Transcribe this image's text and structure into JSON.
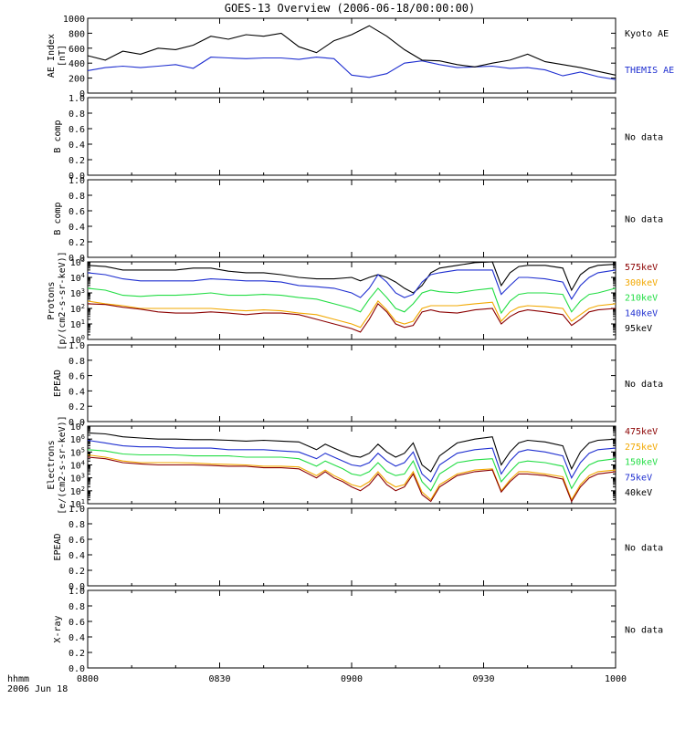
{
  "title": "GOES-13 Overview (2006-06-18/00:00:00)",
  "time_axis": {
    "row_label": "hhmm",
    "date_label": "2006 Jun 18",
    "ticks": [
      "0800",
      "0830",
      "0900",
      "0930",
      "1000"
    ]
  },
  "colors": {
    "black": "#000000",
    "blue": "#1f2fd0",
    "green": "#22dd44",
    "orange": "#f2a800",
    "darkred": "#8b0000"
  },
  "chart_data": [
    {
      "type": "line",
      "panel": "ae",
      "ylabel": [
        "AE Index",
        "[nT]"
      ],
      "ylim": [
        0,
        1000
      ],
      "yticks": [
        "0",
        "200",
        "400",
        "600",
        "800",
        "1000"
      ],
      "x_unit": "minutes after 08:00 UT",
      "x": [
        0,
        4,
        8,
        12,
        16,
        20,
        24,
        28,
        32,
        36,
        40,
        44,
        48,
        52,
        56,
        60,
        64,
        68,
        72,
        76,
        80,
        84,
        88,
        92,
        96,
        100,
        104,
        108,
        112,
        116,
        120
      ],
      "series": [
        {
          "name": "Kyoto AE",
          "color": "black",
          "values": [
            500,
            440,
            560,
            520,
            600,
            580,
            640,
            760,
            720,
            780,
            760,
            800,
            620,
            540,
            700,
            780,
            900,
            760,
            580,
            440,
            430,
            380,
            350,
            400,
            440,
            520,
            420,
            380,
            340,
            290,
            240
          ]
        },
        {
          "name": "THEMIS AE",
          "color": "blue",
          "values": [
            300,
            340,
            360,
            340,
            360,
            380,
            330,
            480,
            470,
            460,
            470,
            470,
            450,
            480,
            460,
            240,
            210,
            260,
            400,
            430,
            380,
            340,
            350,
            360,
            330,
            340,
            310,
            230,
            280,
            220,
            180
          ]
        }
      ],
      "legend": "right"
    },
    {
      "type": "line",
      "panel": "b-comp-1",
      "ylabel": [
        "B comp"
      ],
      "ylim": [
        0,
        1
      ],
      "yticks": [
        "0.0",
        "0.2",
        "0.4",
        "0.6",
        "0.8",
        "1.0"
      ],
      "note": "No data"
    },
    {
      "type": "line",
      "panel": "b-comp-2",
      "ylabel": [
        "B comp"
      ],
      "ylim": [
        0,
        1
      ],
      "yticks": [
        "0.0",
        "0.2",
        "0.4",
        "0.6",
        "0.8",
        "1.0"
      ],
      "note": "No data"
    },
    {
      "type": "line",
      "panel": "protons",
      "ylabel": [
        "Protons",
        "[p/(cm2-s-sr-keV)]"
      ],
      "scale": "log",
      "ylim": [
        1,
        100000
      ],
      "yticks": [
        "10^0",
        "10^1",
        "10^2",
        "10^3",
        "10^4",
        "10^5"
      ],
      "x_unit": "minutes after 08:00 UT",
      "x": [
        0,
        4,
        8,
        12,
        16,
        20,
        24,
        28,
        32,
        36,
        40,
        44,
        48,
        52,
        56,
        60,
        62,
        64,
        66,
        68,
        70,
        72,
        74,
        76,
        78,
        80,
        84,
        88,
        92,
        94,
        96,
        98,
        100,
        104,
        108,
        110,
        112,
        114,
        116,
        120
      ],
      "series": [
        {
          "name": "575keV",
          "color": "darkred",
          "values": [
            200,
            180,
            120,
            90,
            60,
            50,
            50,
            60,
            50,
            40,
            50,
            50,
            40,
            20,
            10,
            5,
            3,
            20,
            200,
            60,
            10,
            6,
            8,
            60,
            80,
            60,
            50,
            80,
            100,
            10,
            30,
            60,
            80,
            60,
            40,
            8,
            20,
            60,
            80,
            100
          ]
        },
        {
          "name": "300keV",
          "color": "orange",
          "values": [
            300,
            200,
            150,
            100,
            100,
            100,
            100,
            100,
            80,
            70,
            80,
            70,
            50,
            40,
            20,
            10,
            6,
            40,
            300,
            80,
            15,
            10,
            15,
            100,
            150,
            150,
            150,
            200,
            250,
            15,
            60,
            120,
            150,
            130,
            100,
            15,
            40,
            100,
            150,
            200
          ]
        },
        {
          "name": "210keV",
          "color": "green",
          "values": [
            2000,
            1500,
            700,
            600,
            700,
            700,
            800,
            1000,
            700,
            700,
            800,
            700,
            500,
            400,
            200,
            100,
            60,
            400,
            2000,
            500,
            100,
            60,
            200,
            1000,
            1500,
            1200,
            1000,
            1500,
            2000,
            50,
            300,
            800,
            1000,
            1000,
            800,
            60,
            300,
            800,
            1000,
            2000
          ]
        },
        {
          "name": "140keV",
          "color": "blue",
          "values": [
            20000,
            15000,
            8000,
            6000,
            6000,
            6000,
            6000,
            8000,
            7000,
            6000,
            6000,
            5000,
            3000,
            2500,
            2000,
            1000,
            500,
            2000,
            15000,
            5000,
            1000,
            500,
            800,
            5000,
            15000,
            20000,
            30000,
            30000,
            30000,
            800,
            3000,
            10000,
            10000,
            8000,
            5000,
            400,
            3000,
            10000,
            20000,
            30000
          ]
        },
        {
          "name": "95keV",
          "color": "black",
          "values": [
            60000,
            50000,
            30000,
            30000,
            30000,
            30000,
            40000,
            40000,
            25000,
            20000,
            20000,
            15000,
            10000,
            8000,
            8000,
            10000,
            6000,
            10000,
            15000,
            10000,
            5000,
            2000,
            1000,
            3000,
            20000,
            40000,
            60000,
            90000,
            100000,
            3000,
            20000,
            50000,
            60000,
            60000,
            40000,
            1500,
            15000,
            40000,
            60000,
            70000
          ]
        }
      ],
      "legend": "right"
    },
    {
      "type": "line",
      "panel": "epead-1",
      "ylabel": [
        "EPEAD"
      ],
      "ylim": [
        0,
        1
      ],
      "yticks": [
        "0.0",
        "0.2",
        "0.4",
        "0.6",
        "0.8",
        "1.0"
      ],
      "note": "No data"
    },
    {
      "type": "line",
      "panel": "electrons",
      "ylabel": [
        "Electrons",
        "[e/(cm2-s-sr-keV)]"
      ],
      "scale": "log",
      "ylim": [
        10,
        10000000
      ],
      "yticks": [
        "10^1",
        "10^2",
        "10^3",
        "10^4",
        "10^5",
        "10^6",
        "10^7"
      ],
      "x_unit": "minutes after 08:00 UT",
      "x": [
        0,
        4,
        8,
        12,
        16,
        20,
        24,
        28,
        32,
        36,
        40,
        44,
        48,
        52,
        54,
        56,
        58,
        60,
        62,
        64,
        66,
        68,
        70,
        72,
        74,
        76,
        78,
        80,
        84,
        88,
        92,
        94,
        96,
        98,
        100,
        104,
        108,
        110,
        112,
        114,
        116,
        120
      ],
      "series": [
        {
          "name": "475keV",
          "color": "darkred",
          "values": [
            40000,
            30000,
            15000,
            12000,
            10000,
            10000,
            10000,
            9000,
            8000,
            8000,
            6000,
            6000,
            5000,
            1000,
            3000,
            1000,
            500,
            200,
            100,
            300,
            2000,
            300,
            100,
            200,
            2000,
            50,
            15,
            200,
            1500,
            3000,
            4000,
            80,
            500,
            2000,
            2000,
            1500,
            800,
            15,
            200,
            1000,
            2000,
            3000
          ]
        },
        {
          "name": "275keV",
          "color": "orange",
          "values": [
            60000,
            40000,
            20000,
            15000,
            15000,
            15000,
            14000,
            12000,
            11000,
            10000,
            8000,
            8000,
            7000,
            1500,
            4000,
            1500,
            700,
            300,
            200,
            500,
            3000,
            500,
            200,
            300,
            3000,
            80,
            20,
            300,
            2000,
            4000,
            5000,
            100,
            700,
            3000,
            3000,
            2000,
            1200,
            20,
            300,
            1500,
            3000,
            4000
          ]
        },
        {
          "name": "150keV",
          "color": "green",
          "values": [
            150000,
            120000,
            70000,
            60000,
            60000,
            60000,
            50000,
            50000,
            50000,
            40000,
            40000,
            40000,
            30000,
            8000,
            20000,
            10000,
            5000,
            2000,
            1500,
            3000,
            15000,
            3000,
            1500,
            2000,
            20000,
            500,
            100,
            2000,
            15000,
            25000,
            30000,
            500,
            3000,
            15000,
            20000,
            15000,
            8000,
            150,
            2000,
            10000,
            20000,
            30000
          ]
        },
        {
          "name": "75keV",
          "color": "blue",
          "values": [
            800000,
            500000,
            300000,
            250000,
            250000,
            200000,
            200000,
            200000,
            150000,
            150000,
            150000,
            120000,
            100000,
            30000,
            80000,
            40000,
            20000,
            10000,
            8000,
            15000,
            80000,
            20000,
            8000,
            15000,
            100000,
            2000,
            500,
            10000,
            80000,
            150000,
            200000,
            2000,
            20000,
            100000,
            150000,
            100000,
            50000,
            1000,
            15000,
            80000,
            150000,
            200000
          ]
        },
        {
          "name": "40keV",
          "color": "black",
          "values": [
            3000000,
            2500000,
            1500000,
            1200000,
            1000000,
            1000000,
            900000,
            900000,
            800000,
            700000,
            800000,
            700000,
            600000,
            150000,
            400000,
            200000,
            100000,
            50000,
            40000,
            80000,
            400000,
            100000,
            40000,
            80000,
            500000,
            10000,
            3000,
            50000,
            500000,
            1000000,
            1500000,
            10000,
            100000,
            500000,
            800000,
            600000,
            300000,
            5000,
            100000,
            500000,
            800000,
            1000000
          ]
        }
      ],
      "legend": "right"
    },
    {
      "type": "line",
      "panel": "epead-2",
      "ylabel": [
        "EPEAD"
      ],
      "ylim": [
        0,
        1
      ],
      "yticks": [
        "0.0",
        "0.2",
        "0.4",
        "0.6",
        "0.8",
        "1.0"
      ],
      "note": "No data"
    },
    {
      "type": "line",
      "panel": "x-ray",
      "ylabel": [
        "X-ray"
      ],
      "ylim": [
        0,
        1
      ],
      "yticks": [
        "0.0",
        "0.2",
        "0.4",
        "0.6",
        "0.8",
        "1.0"
      ],
      "note": "No data"
    }
  ]
}
